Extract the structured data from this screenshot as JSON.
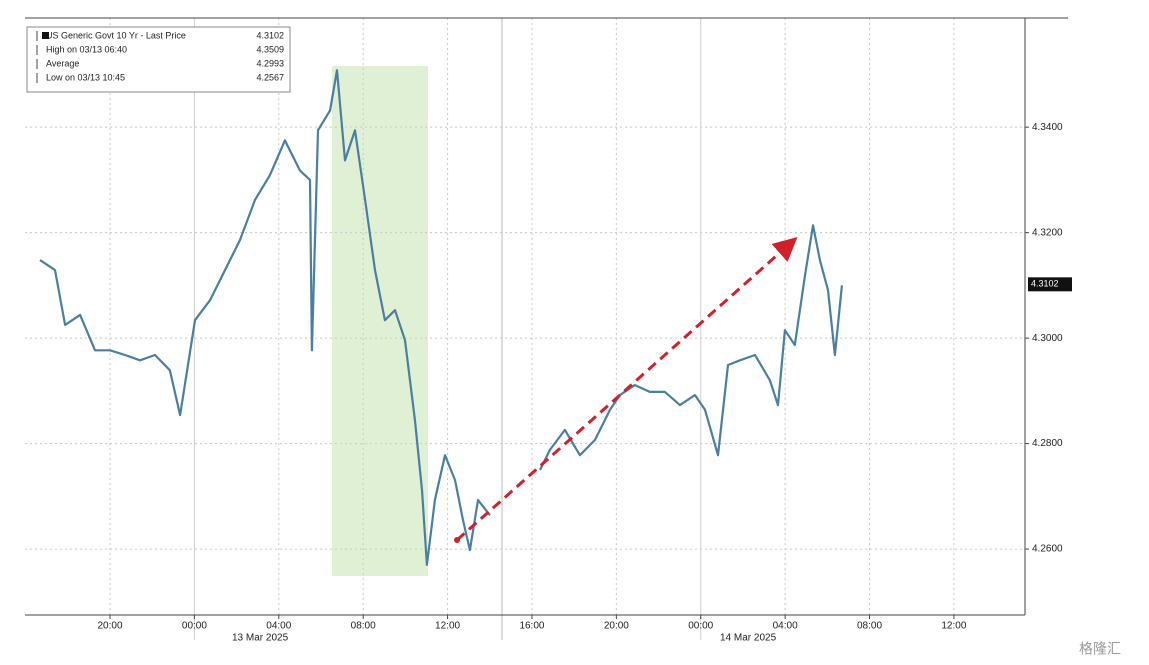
{
  "chart_data": {
    "type": "line",
    "legend": [
      {
        "label": "US Generic Govt 10 Yr - Last Price",
        "value": "4.3102"
      },
      {
        "label": "High on 03/13 06:40",
        "value": "4.3509"
      },
      {
        "label": "Average",
        "value": "4.2993"
      },
      {
        "label": "Low on 03/13 10:45",
        "value": "4.2567"
      }
    ],
    "last_price": {
      "value": 4.3102,
      "label": "4.3102"
    },
    "date_labels": [
      "13 Mar 2025",
      "14 Mar 2025"
    ],
    "watermark": "格隆汇",
    "x": [
      -3.32,
      -2.61,
      -2.13,
      -1.42,
      -0.71,
      0,
      0.71,
      1.42,
      2.13,
      2.84,
      3.32,
      4.03,
      4.74,
      5.45,
      6.16,
      6.87,
      7.58,
      8.29,
      9.0,
      9.48,
      9.57,
      9.86,
      10.43,
      10.76,
      11.14,
      11.61,
      12.09,
      12.56,
      13.03,
      13.51,
      13.98,
      14.45,
      14.79,
      15.02,
      15.4,
      15.88,
      16.35,
      16.73,
      17.06,
      17.44,
      18.01,
      19.19,
      20.38,
      20.85,
      21.56,
      22.27,
      22.99,
      23.7,
      24.17,
      24.88,
      25.59,
      26.3,
      27.01,
      27.73,
      28.2,
      28.82,
      29.29,
      29.86,
      30.57,
      31.28,
      31.66,
      31.99,
      32.46,
      32.94,
      33.32,
      33.65,
      34.03,
      34.36,
      34.69
    ],
    "series": [
      {
        "name": "US Generic Govt 10 Yr",
        "color": "#4a7f9f",
        "values": [
          4.3148,
          4.3129,
          4.3025,
          4.3044,
          4.2977,
          4.2977,
          4.2968,
          4.2958,
          4.2968,
          4.2939,
          4.2854,
          4.3034,
          4.3072,
          4.3129,
          4.3186,
          4.3262,
          4.3309,
          4.3375,
          4.3318,
          4.33,
          4.2977,
          4.3394,
          4.3432,
          4.3508,
          4.3337,
          4.3394,
          4.3262,
          4.3129,
          4.3034,
          4.3053,
          4.2996,
          4.2845,
          4.2712,
          4.257,
          4.2693,
          4.2778,
          4.2731,
          4.2655,
          4.2598,
          4.2693,
          4.2664,
          null,
          4.275,
          4.2788,
          4.2826,
          4.2778,
          4.2807,
          4.2864,
          4.2892,
          4.2911,
          4.2898,
          4.2898,
          4.2873,
          4.2892,
          4.2864,
          4.2778,
          4.2949,
          4.2958,
          4.2968,
          4.292,
          4.2873,
          4.3015,
          4.2987,
          4.3119,
          4.3214,
          4.3148,
          4.3091,
          4.2968,
          4.31
        ]
      }
    ],
    "xlim": [
      -4.03,
      43.37
    ],
    "xticks": [
      {
        "value": 0,
        "label": "20:00"
      },
      {
        "value": 4,
        "label": "00:00"
      },
      {
        "value": 8,
        "label": "04:00"
      },
      {
        "value": 12,
        "label": "08:00"
      },
      {
        "value": 16,
        "label": "12:00"
      },
      {
        "value": 20,
        "label": "16:00"
      },
      {
        "value": 24,
        "label": "20:00"
      },
      {
        "value": 28,
        "label": "00:00"
      },
      {
        "value": 32,
        "label": "04:00"
      },
      {
        "value": 36,
        "label": "08:00"
      },
      {
        "value": 40,
        "label": "12:00"
      }
    ],
    "ylim": [
      4.2475,
      4.3607
    ],
    "yticks": [
      {
        "value": 4.26,
        "label": "4.2600"
      },
      {
        "value": 4.28,
        "label": "4.2800"
      },
      {
        "value": 4.3,
        "label": "4.3000"
      },
      {
        "value": 4.32,
        "label": "4.3200"
      },
      {
        "value": 4.34,
        "label": "4.3400"
      }
    ],
    "grid": true
  }
}
